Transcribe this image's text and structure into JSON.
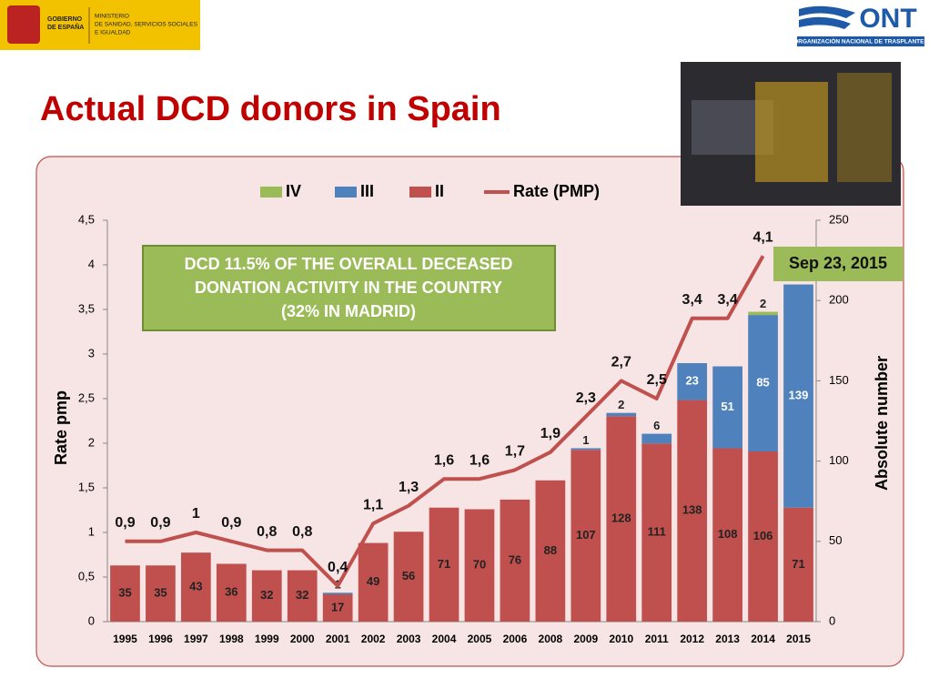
{
  "header": {
    "government": [
      "GOBIERNO",
      "DE ESPAÑA"
    ],
    "ministry": [
      "MINISTERIO",
      "DE SANIDAD, SERVICIOS SOCIALES",
      "E IGUALDAD"
    ],
    "org_logo": "ONT",
    "org_name": "ORGANIZACIÓN NACIONAL DE TRASPLANTES"
  },
  "title": "Actual DCD donors in Spain",
  "chart_data": {
    "type": "bar",
    "stacked": true,
    "categories": [
      "1995",
      "1996",
      "1997",
      "1998",
      "1999",
      "2000",
      "2001",
      "2002",
      "2003",
      "2004",
      "2005",
      "2006",
      "2008",
      "2009",
      "2010",
      "2011",
      "2012",
      "2013",
      "2014",
      "2015"
    ],
    "series": [
      {
        "name": "IV",
        "color": "#9bbb59",
        "axis": "y2",
        "values": [
          null,
          null,
          null,
          null,
          null,
          null,
          null,
          null,
          null,
          null,
          null,
          null,
          null,
          null,
          null,
          null,
          null,
          null,
          2,
          null
        ]
      },
      {
        "name": "III",
        "color": "#4f81bd",
        "axis": "y2",
        "values": [
          null,
          null,
          null,
          null,
          null,
          null,
          1,
          null,
          null,
          null,
          null,
          null,
          null,
          1,
          2,
          6,
          23,
          51,
          85,
          139
        ]
      },
      {
        "name": "II",
        "color": "#c0504d",
        "axis": "y2",
        "values": [
          35,
          35,
          43,
          36,
          32,
          32,
          17,
          49,
          56,
          71,
          70,
          76,
          88,
          107,
          128,
          111,
          138,
          108,
          106,
          71
        ]
      },
      {
        "name": "Rate (PMP)",
        "color": "#c0504d",
        "type": "line",
        "values": [
          0.9,
          0.9,
          1,
          0.9,
          0.8,
          0.8,
          0.4,
          1.1,
          1.3,
          1.6,
          1.6,
          1.7,
          1.9,
          2.3,
          2.7,
          2.5,
          3.4,
          3.4,
          4.1,
          null
        ],
        "value_labels": [
          "0,9",
          "0,9",
          "1",
          "0,9",
          "0,8",
          "0,8",
          "0,4",
          "1,1",
          "1,3",
          "1,6",
          "1,6",
          "1,7",
          "1,9",
          "2,3",
          "2,7",
          "2,5",
          "3,4",
          "3,4",
          "4,1",
          null
        ]
      }
    ],
    "ylabel": "Rate pmp",
    "y2label": "Absolute number",
    "ylim": [
      0,
      4.5
    ],
    "yticks": [
      0,
      {
        "value": 0.5,
        "label": "0,5"
      },
      1,
      {
        "value": 1.5,
        "label": "1,5"
      },
      2,
      {
        "value": 2.5,
        "label": "2,5"
      },
      3,
      {
        "value": 3.5,
        "label": "3,5"
      },
      4,
      {
        "value": 4.5,
        "label": "4,5"
      }
    ],
    "y2lim": [
      0,
      250
    ],
    "y2ticks": [
      0,
      50,
      100,
      150,
      200,
      250
    ],
    "legend": "top",
    "annotation": [
      "DCD 11.5% OF THE OVERALL DECEASED",
      "DONATION ACTIVITY IN THE COUNTRY",
      "(32% IN MADRID)"
    ],
    "date_note": "Sep 23, 2015"
  }
}
